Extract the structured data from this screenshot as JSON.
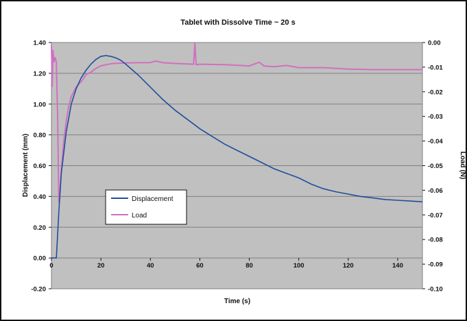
{
  "chart_data": {
    "type": "line",
    "title": "Tablet with Dissolve Time ~ 20 s",
    "xlabel": "Time (s)",
    "ylabel_left": "Displacement (mm)",
    "ylabel_right": "Load (N)",
    "xlim": [
      0,
      150
    ],
    "ylim_left": [
      -0.2,
      1.4
    ],
    "ylim_right": [
      -0.1,
      0.0
    ],
    "x_ticks": [
      "0",
      "20",
      "40",
      "60",
      "80",
      "100",
      "120",
      "140"
    ],
    "y_left_ticks": [
      "-0.20",
      "0.00",
      "0.20",
      "0.40",
      "0.60",
      "0.80",
      "1.00",
      "1.20",
      "1.40"
    ],
    "y_right_ticks": [
      "0.00",
      "-0.01",
      "-0.02",
      "-0.03",
      "-0.04",
      "-0.05",
      "-0.06",
      "-0.07",
      "-0.08",
      "-0.09",
      "-0.10"
    ],
    "grid": "horizontal",
    "legend_position": "lower-left",
    "series": [
      {
        "name": "Displacement",
        "axis": "left",
        "color": "#1f4e9c",
        "x": [
          0,
          2,
          3,
          4,
          6,
          8,
          10,
          12,
          14,
          16,
          18,
          20,
          22,
          24,
          26,
          28,
          30,
          35,
          40,
          45,
          50,
          55,
          60,
          65,
          70,
          75,
          80,
          85,
          90,
          95,
          100,
          105,
          110,
          115,
          120,
          125,
          130,
          135,
          140,
          145,
          150
        ],
        "y": [
          0.0,
          0.0,
          0.3,
          0.55,
          0.82,
          1.0,
          1.1,
          1.17,
          1.22,
          1.26,
          1.29,
          1.31,
          1.315,
          1.31,
          1.3,
          1.285,
          1.26,
          1.19,
          1.11,
          1.03,
          0.96,
          0.9,
          0.84,
          0.79,
          0.74,
          0.7,
          0.66,
          0.62,
          0.58,
          0.55,
          0.52,
          0.48,
          0.45,
          0.43,
          0.415,
          0.4,
          0.39,
          0.38,
          0.375,
          0.37,
          0.365
        ]
      },
      {
        "name": "Load",
        "axis": "right",
        "color": "#d070c0",
        "x": [
          0,
          0.3,
          0.6,
          1.0,
          1.5,
          2.0,
          2.5,
          3.0,
          3.5,
          4.0,
          5.0,
          6.0,
          7.0,
          8.0,
          9.0,
          10.0,
          12.0,
          14.0,
          16.0,
          18.0,
          20.0,
          22.0,
          25.0,
          30.0,
          35.0,
          40.0,
          42.0,
          45.0,
          50.0,
          55.0,
          57.5,
          58.0,
          58.5,
          60.0,
          70.0,
          80.0,
          84.0,
          86.0,
          90.0,
          95.0,
          100.0,
          110.0,
          120.0,
          130.0,
          140.0,
          150.0
        ],
        "y": [
          -0.001,
          -0.018,
          -0.003,
          -0.008,
          -0.006,
          -0.008,
          -0.03,
          -0.065,
          -0.06,
          -0.052,
          -0.04,
          -0.032,
          -0.026,
          -0.022,
          -0.02,
          -0.018,
          -0.016,
          -0.013,
          -0.012,
          -0.0105,
          -0.0095,
          -0.009,
          -0.0085,
          -0.0083,
          -0.0082,
          -0.0082,
          -0.0075,
          -0.0082,
          -0.0085,
          -0.0087,
          -0.0088,
          0.0,
          -0.009,
          -0.0088,
          -0.009,
          -0.0095,
          -0.008,
          -0.0095,
          -0.0098,
          -0.0093,
          -0.0102,
          -0.0102,
          -0.0108,
          -0.011,
          -0.011,
          -0.011
        ]
      }
    ]
  }
}
